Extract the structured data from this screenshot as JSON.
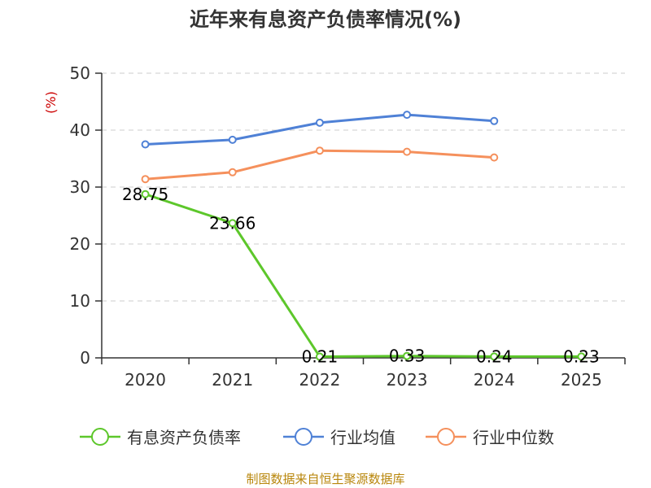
{
  "chart_data": {
    "type": "line",
    "title": "近年来有息资产负债率情况(%)",
    "ylabel": "(%)",
    "ylim": [
      0,
      50
    ],
    "yticks": [
      0,
      10,
      20,
      30,
      40,
      50
    ],
    "categories": [
      "2020",
      "2021",
      "2022",
      "2023",
      "2024",
      "2025"
    ],
    "grid": true,
    "legend_position": "bottom",
    "series": [
      {
        "name": "有息资产负债率",
        "color": "#5dc72b",
        "values": [
          28.75,
          23.66,
          0.21,
          0.33,
          0.24,
          0.23
        ],
        "labels": [
          "28.75",
          "23.66",
          "0.21",
          "0.33",
          "0.24",
          "0.23"
        ],
        "show_labels": true
      },
      {
        "name": "行业均值",
        "color": "#4f81d6",
        "values": [
          37.5,
          38.3,
          41.3,
          42.7,
          41.6,
          null
        ],
        "show_labels": false
      },
      {
        "name": "行业中位数",
        "color": "#f5905c",
        "values": [
          31.4,
          32.6,
          36.4,
          36.2,
          35.2,
          null
        ],
        "show_labels": false
      }
    ],
    "source": "制图数据来自恒生聚源数据库"
  }
}
